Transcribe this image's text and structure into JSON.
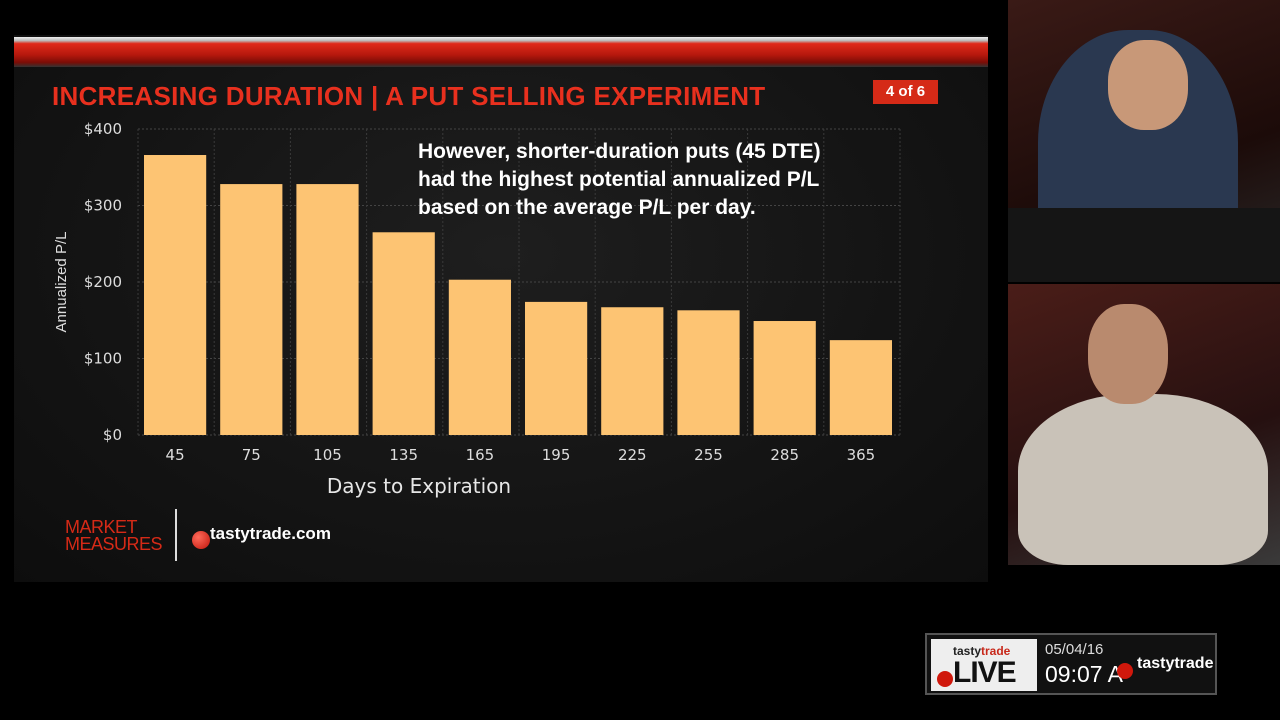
{
  "slide": {
    "title": "INCREASING DURATION | A PUT SELLING EXPERIMENT",
    "badge": "4 of 6",
    "note_lines": [
      "However, shorter-duration puts (45 DTE)",
      "had the highest potential annualized P/L",
      "based on the average P/L per day."
    ],
    "brand_line1": "MARKET",
    "brand_line2": "MEASURES",
    "site": "tastytrade.com"
  },
  "chart_data": {
    "type": "bar",
    "title": "",
    "xlabel": "Days to Expiration",
    "ylabel": "Annualized P/L",
    "categories": [
      "45",
      "75",
      "105",
      "135",
      "165",
      "195",
      "225",
      "255",
      "285",
      "365"
    ],
    "values": [
      366,
      328,
      328,
      265,
      203,
      174,
      167,
      163,
      149,
      124
    ],
    "ylim": [
      0,
      400
    ],
    "yticks": [
      0,
      100,
      200,
      300,
      400
    ],
    "ytick_labels": [
      "$0",
      "$100",
      "$200",
      "$300",
      "$400"
    ],
    "grid": true,
    "bar_color": "#fdc473"
  },
  "overlay": {
    "brand_top": "tasty",
    "brand_top_accent": "trade",
    "live": "LIVE",
    "date": "05/04/16",
    "time": "09:07 A",
    "brand": "tastytrade"
  }
}
